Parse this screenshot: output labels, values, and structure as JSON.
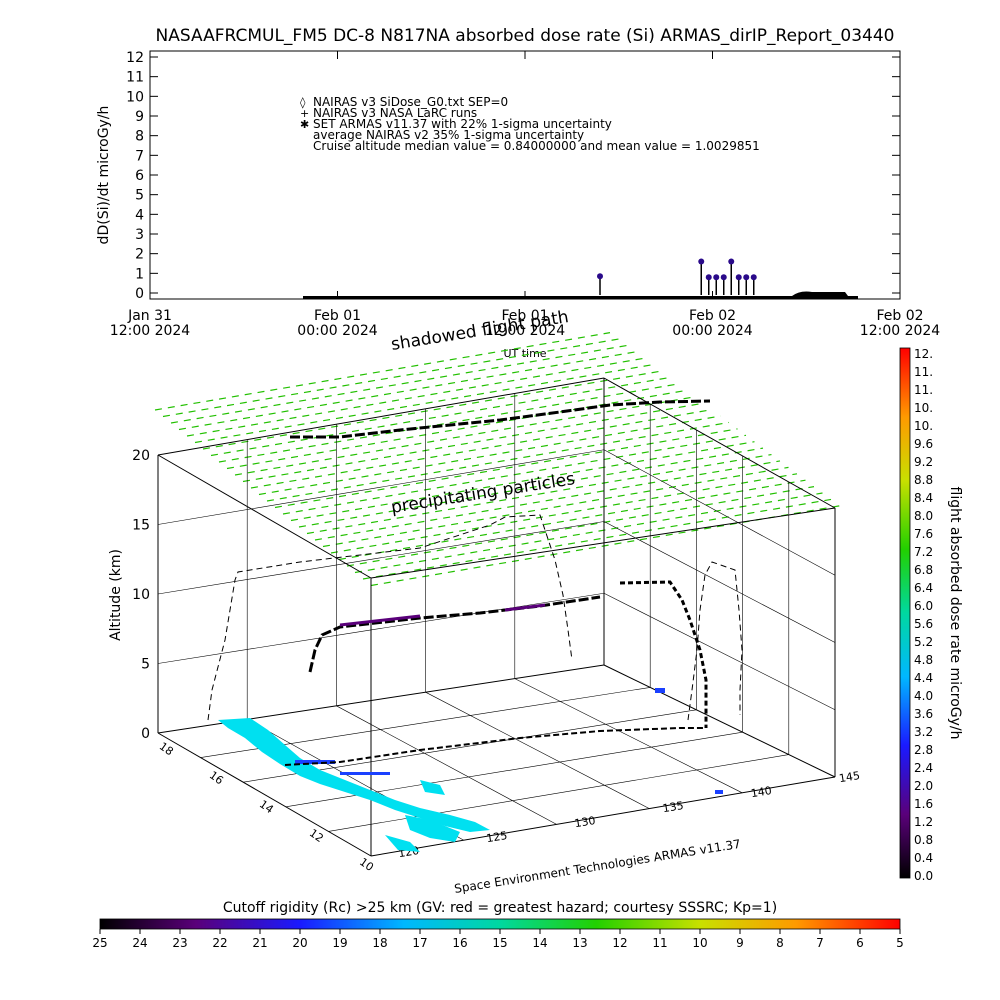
{
  "title": "NASAAFRCMUL_FM5 DC-8   N817NA absorbed dose rate (Si) ARMAS_dirIP_Report_03440",
  "chart_data": [
    {
      "type": "line",
      "ylabel": "dD(Si)/dt microGy/h",
      "xlabel": "UT time",
      "ylim": [
        0,
        12
      ],
      "y_ticks": [
        "0",
        "1",
        "2",
        "3",
        "4",
        "5",
        "6",
        "7",
        "8",
        "9",
        "10",
        "11",
        "12"
      ],
      "x_ticks": [
        {
          "l1": "Jan 31",
          "l2": "12:00 2024"
        },
        {
          "l1": "Feb 01",
          "l2": "00:00 2024"
        },
        {
          "l1": "Feb 01",
          "l2": "12:00 2024"
        },
        {
          "l1": "Feb 02",
          "l2": "00:00 2024"
        },
        {
          "l1": "Feb 02",
          "l2": "12:00 2024"
        }
      ],
      "legend": [
        {
          "marker": "◊",
          "text": "NAIRAS v3 SiDose_G0.txt SEP=0"
        },
        {
          "marker": "+",
          "text": "NAIRAS v3 NASA LaRC runs"
        },
        {
          "marker": "✱",
          "text": "SET ARMAS v11.37 with 22% 1-sigma uncertainty"
        },
        {
          "marker": "",
          "text": "average NAIRAS v2 35% 1-sigma uncertainty"
        },
        {
          "marker": "",
          "text": "Cruise altitude median value = 0.84000000 and mean value = 1.0029851"
        }
      ],
      "series": [
        {
          "name": "SET ARMAS v11.37",
          "color": "#2a0a8a",
          "points": [
            {
              "t": 1.2,
              "v": 0.85
            },
            {
              "t": 1.47,
              "v": 1.6
            },
            {
              "t": 1.49,
              "v": 0.8
            },
            {
              "t": 1.51,
              "v": 0.8
            },
            {
              "t": 1.53,
              "v": 0.8
            },
            {
              "t": 1.55,
              "v": 1.6
            },
            {
              "t": 1.57,
              "v": 0.8
            },
            {
              "t": 1.59,
              "v": 0.8
            },
            {
              "t": 1.61,
              "v": 0.8
            }
          ]
        }
      ]
    },
    {
      "type": "scatter",
      "zlabel": "Altitude (km)",
      "z_ticks": [
        "0",
        "5",
        "10",
        "15",
        "20"
      ],
      "lon_ticks": [
        "120",
        "125",
        "130",
        "135",
        "140",
        "145"
      ],
      "lat_ticks": [
        "10",
        "12",
        "14",
        "16",
        "18"
      ],
      "colorbar_label": "flight absorbed dose rate microGy/h",
      "colorbar_ticks": [
        "0.0",
        "0.4",
        "0.8",
        "1.2",
        "1.6",
        "2.0",
        "2.4",
        "2.8",
        "3.2",
        "3.6",
        "4.0",
        "4.4",
        "4.8",
        "5.2",
        "5.6",
        "6.0",
        "6.4",
        "6.8",
        "7.2",
        "7.6",
        "8.0",
        "8.4",
        "8.8",
        "9.2",
        "9.6",
        "10.",
        "10.",
        "11.",
        "11.",
        "12."
      ],
      "annotations": [
        "shadowed flight path",
        "precipitating particles"
      ],
      "credit": "Space Environment Technologies ARMAS v11.37"
    }
  ],
  "rigidity_bar": {
    "label": "Cutoff rigidity (Rc) >25 km (GV: red = greatest hazard; courtesy SSSRC; Kp=1)",
    "ticks": [
      "25",
      "24",
      "23",
      "22",
      "21",
      "20",
      "19",
      "18",
      "17",
      "16",
      "15",
      "14",
      "13",
      "12",
      "11",
      "10",
      "9",
      "8",
      "7",
      "6",
      "5"
    ]
  }
}
